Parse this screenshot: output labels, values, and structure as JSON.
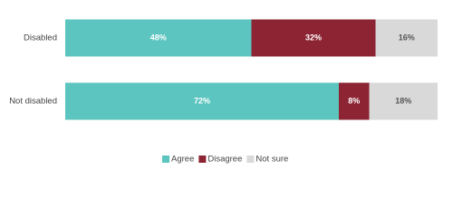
{
  "chart_data": {
    "type": "stacked-bar-horizontal",
    "categories": [
      "Disabled",
      "Not disabled"
    ],
    "series": [
      {
        "name": "Agree",
        "color": "#5cc5bf",
        "label_color": "#ffffff",
        "values": [
          48,
          72
        ],
        "value_labels": [
          "48%",
          "72%"
        ]
      },
      {
        "name": "Disagree",
        "color": "#8c2433",
        "label_color": "#ffffff",
        "values": [
          32,
          8
        ],
        "value_labels": [
          "32%",
          "8%"
        ]
      },
      {
        "name": "Not sure",
        "color": "#d9d9d9",
        "label_color": "#555555",
        "values": [
          16,
          18
        ],
        "value_labels": [
          "16%",
          "18%"
        ]
      }
    ],
    "legend": "bottom"
  }
}
